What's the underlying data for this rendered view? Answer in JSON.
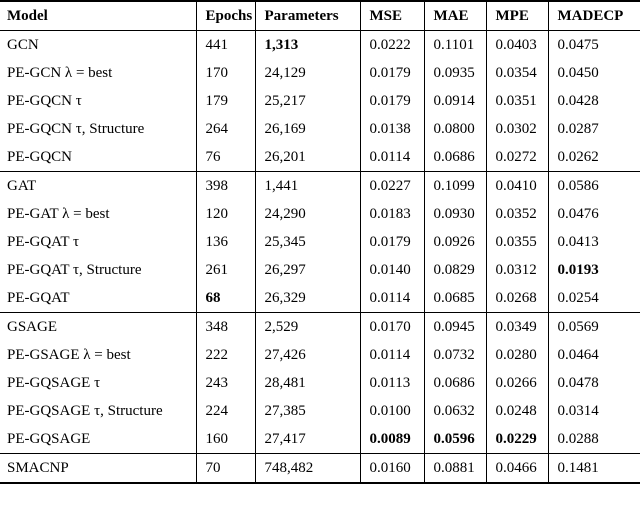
{
  "table": {
    "columns": [
      "Model",
      "Epochs",
      "Parameters",
      "MSE",
      "MAE",
      "MPE",
      "MADECP"
    ],
    "groups": [
      {
        "rows": [
          {
            "cells": [
              "GCN",
              "441",
              "1,313",
              "0.0222",
              "0.1101",
              "0.0403",
              "0.0475"
            ],
            "bold": [
              2
            ]
          },
          {
            "cells": [
              "PE-GCN λ = best",
              "170",
              "24,129",
              "0.0179",
              "0.0935",
              "0.0354",
              "0.0450"
            ],
            "bold": []
          },
          {
            "cells": [
              "PE-GQCN τ",
              "179",
              "25,217",
              "0.0179",
              "0.0914",
              "0.0351",
              "0.0428"
            ],
            "bold": []
          },
          {
            "cells": [
              "PE-GQCN τ, Structure",
              "264",
              "26,169",
              "0.0138",
              "0.0800",
              "0.0302",
              "0.0287"
            ],
            "bold": []
          },
          {
            "cells": [
              "PE-GQCN",
              "76",
              "26,201",
              "0.0114",
              "0.0686",
              "0.0272",
              "0.0262"
            ],
            "bold": []
          }
        ]
      },
      {
        "rows": [
          {
            "cells": [
              "GAT",
              "398",
              "1,441",
              "0.0227",
              "0.1099",
              "0.0410",
              "0.0586"
            ],
            "bold": []
          },
          {
            "cells": [
              "PE-GAT λ = best",
              "120",
              "24,290",
              "0.0183",
              "0.0930",
              "0.0352",
              "0.0476"
            ],
            "bold": []
          },
          {
            "cells": [
              "PE-GQAT τ",
              "136",
              "25,345",
              "0.0179",
              "0.0926",
              "0.0355",
              "0.0413"
            ],
            "bold": []
          },
          {
            "cells": [
              "PE-GQAT τ, Structure",
              "261",
              "26,297",
              "0.0140",
              "0.0829",
              "0.0312",
              "0.0193"
            ],
            "bold": [
              6
            ]
          },
          {
            "cells": [
              "PE-GQAT",
              "68",
              "26,329",
              "0.0114",
              "0.0685",
              "0.0268",
              "0.0254"
            ],
            "bold": [
              1
            ]
          }
        ]
      },
      {
        "rows": [
          {
            "cells": [
              "GSAGE",
              "348",
              "2,529",
              "0.0170",
              "0.0945",
              "0.0349",
              "0.0569"
            ],
            "bold": []
          },
          {
            "cells": [
              "PE-GSAGE λ = best",
              "222",
              "27,426",
              "0.0114",
              "0.0732",
              "0.0280",
              "0.0464"
            ],
            "bold": []
          },
          {
            "cells": [
              "PE-GQSAGE τ",
              "243",
              "28,481",
              "0.0113",
              "0.0686",
              "0.0266",
              "0.0478"
            ],
            "bold": []
          },
          {
            "cells": [
              "PE-GQSAGE τ, Structure",
              "224",
              "27,385",
              "0.0100",
              "0.0632",
              "0.0248",
              "0.0314"
            ],
            "bold": []
          },
          {
            "cells": [
              "PE-GQSAGE",
              "160",
              "27,417",
              "0.0089",
              "0.0596",
              "0.0229",
              "0.0288"
            ],
            "bold": [
              3,
              4,
              5
            ]
          }
        ]
      },
      {
        "rows": [
          {
            "cells": [
              "SMACNP",
              "70",
              "748,482",
              "0.0160",
              "0.0881",
              "0.0466",
              "0.1481"
            ],
            "bold": []
          }
        ]
      }
    ]
  }
}
